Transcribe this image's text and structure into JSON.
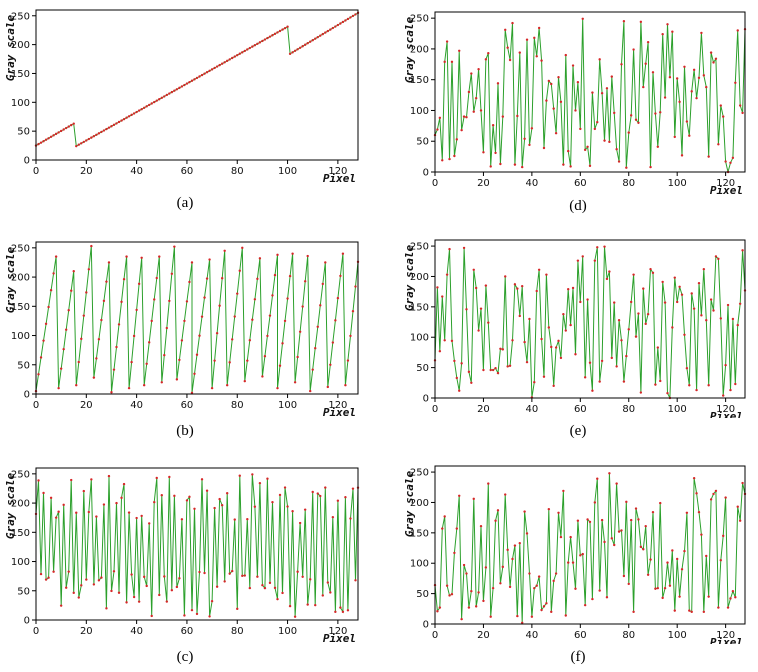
{
  "colors": {
    "line": "#2ca02c",
    "marker": "#d62728",
    "frame": "#000000"
  },
  "chart_data": [
    {
      "type": "line",
      "caption": "(a)",
      "pattern": "ramp",
      "xlabel": "Pixel",
      "ylabel": "Gray scale",
      "xlim": [
        0,
        128
      ],
      "ylim": [
        0,
        260
      ],
      "xticks": [
        0,
        20,
        40,
        60,
        80,
        100,
        120
      ],
      "yticks": [
        0,
        50,
        100,
        150,
        200,
        250
      ],
      "series": [
        {
          "segments": [
            {
              "x": [
                0,
                15
              ],
              "y": [
                25,
                63
              ]
            },
            {
              "x": [
                16,
                100
              ],
              "y": [
                24,
                231
              ]
            },
            {
              "x": [
                101,
                128
              ],
              "y": [
                184,
                255
              ]
            }
          ]
        }
      ]
    },
    {
      "type": "line",
      "caption": "(b)",
      "pattern": "sawtooth",
      "xlabel": "Pixel",
      "ylabel": "Gray scale",
      "xlim": [
        0,
        128
      ],
      "ylim": [
        0,
        260
      ],
      "xticks": [
        0,
        20,
        40,
        60,
        80,
        100,
        120
      ],
      "yticks": [
        0,
        50,
        100,
        150,
        200,
        250
      ],
      "series": [
        {
          "peaks": [
            [
              8,
              235
            ],
            [
              15,
              210
            ],
            [
              22,
              253
            ],
            [
              29,
              225
            ],
            [
              36,
              235
            ],
            [
              42,
              233
            ],
            [
              49,
              235
            ],
            [
              55,
              252
            ],
            [
              62,
              225
            ],
            [
              69,
              230
            ],
            [
              75,
              245
            ],
            [
              82,
              250
            ],
            [
              89,
              232
            ],
            [
              96,
              238
            ],
            [
              102,
              240
            ],
            [
              108,
              236
            ],
            [
              115,
              225
            ],
            [
              122,
              240
            ]
          ],
          "troughs": [
            [
              0,
              5
            ],
            [
              9,
              10
            ],
            [
              16,
              15
            ],
            [
              23,
              28
            ],
            [
              30,
              3
            ],
            [
              37,
              10
            ],
            [
              43,
              15
            ],
            [
              50,
              20
            ],
            [
              56,
              25
            ],
            [
              62,
              2
            ],
            [
              70,
              10
            ],
            [
              76,
              15
            ],
            [
              83,
              22
            ],
            [
              90,
              30
            ],
            [
              96,
              10
            ],
            [
              103,
              20
            ],
            [
              109,
              5
            ],
            [
              116,
              12
            ],
            [
              123,
              15
            ]
          ],
          "end": [
            128,
            226
          ]
        }
      ]
    },
    {
      "type": "line",
      "caption": "(c)",
      "pattern": "oscillation",
      "xlabel": "Pixel",
      "ylabel": "Gray scale",
      "xlim": [
        0,
        128
      ],
      "ylim": [
        0,
        260
      ],
      "xticks": [
        0,
        20,
        40,
        60,
        80,
        100,
        120
      ],
      "yticks": [
        0,
        50,
        100,
        150,
        200,
        250
      ],
      "series": [
        {
          "seed": 3,
          "period": 2.6,
          "hi": [
            160,
            250
          ],
          "lo": [
            5,
            90
          ]
        }
      ]
    },
    {
      "type": "line",
      "caption": "(d)",
      "pattern": "random",
      "xlabel": "Pixel",
      "ylabel": "Gray scale",
      "xlim": [
        0,
        128
      ],
      "ylim": [
        0,
        260
      ],
      "xticks": [
        0,
        20,
        40,
        60,
        80,
        100,
        120
      ],
      "yticks": [
        0,
        50,
        100,
        150,
        200,
        250
      ],
      "series": [
        {
          "seed": 11
        }
      ]
    },
    {
      "type": "line",
      "caption": "(e)",
      "pattern": "random",
      "xlabel": "Pixel",
      "ylabel": "Gray scale",
      "xlim": [
        0,
        128
      ],
      "ylim": [
        0,
        260
      ],
      "xticks": [
        0,
        20,
        40,
        60,
        80,
        100,
        120
      ],
      "yticks": [
        0,
        50,
        100,
        150,
        200,
        250
      ],
      "series": [
        {
          "seed": 27
        }
      ]
    },
    {
      "type": "line",
      "caption": "(f)",
      "pattern": "random",
      "xlabel": "Pixel",
      "ylabel": "Gray scale",
      "xlim": [
        0,
        128
      ],
      "ylim": [
        0,
        260
      ],
      "xticks": [
        0,
        20,
        40,
        60,
        80,
        100,
        120
      ],
      "yticks": [
        0,
        50,
        100,
        150,
        200,
        250
      ],
      "series": [
        {
          "seed": 53
        }
      ]
    }
  ]
}
